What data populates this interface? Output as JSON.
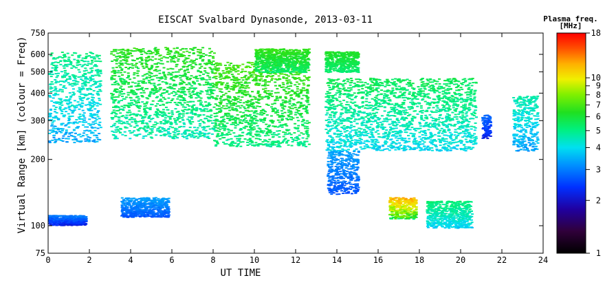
{
  "chart_data": {
    "type": "scatter",
    "title": "EISCAT Svalbard Dynasonde, 2013-03-11",
    "xlabel": "UT TIME",
    "ylabel": "Virtual Range [km] (colour = Freq)",
    "xlim": [
      0,
      24
    ],
    "ylim": [
      75,
      750
    ],
    "yscale": "log",
    "x_ticks": [
      "0",
      "2",
      "4",
      "6",
      "8",
      "10",
      "12",
      "14",
      "16",
      "18",
      "20",
      "22",
      "24"
    ],
    "y_ticks": [
      "75",
      "100",
      "200",
      "300",
      "400",
      "500",
      "600",
      "750"
    ],
    "colorbar": {
      "title_line1": "Plasma freq.",
      "title_line2": "[MHz]",
      "scale": "log",
      "range": [
        1,
        18
      ],
      "ticks": [
        "1",
        "2",
        "3",
        "4",
        "5",
        "6",
        "7",
        "8",
        "9",
        "10",
        "18"
      ]
    },
    "grid": false,
    "clusters": [
      {
        "x": [
          0.0,
          2.5
        ],
        "y": [
          240,
          620
        ],
        "freq": [
          3.0,
          5.5
        ]
      },
      {
        "x": [
          3.0,
          8.0
        ],
        "y": [
          250,
          650
        ],
        "freq": [
          4.0,
          7.0
        ]
      },
      {
        "x": [
          8.0,
          12.6
        ],
        "y": [
          230,
          560
        ],
        "freq": [
          4.5,
          7.5
        ]
      },
      {
        "x": [
          10.0,
          12.6
        ],
        "y": [
          500,
          640
        ],
        "freq": [
          5.0,
          7.0
        ]
      },
      {
        "x": [
          13.4,
          15.0
        ],
        "y": [
          500,
          620
        ],
        "freq": [
          5.0,
          6.5
        ]
      },
      {
        "x": [
          13.4,
          20.7
        ],
        "y": [
          220,
          470
        ],
        "freq": [
          3.5,
          6.0
        ]
      },
      {
        "x": [
          21.0,
          21.4
        ],
        "y": [
          250,
          320
        ],
        "freq": [
          2.0,
          3.0
        ]
      },
      {
        "x": [
          22.5,
          23.7
        ],
        "y": [
          220,
          390
        ],
        "freq": [
          3.0,
          5.0
        ]
      },
      {
        "x": [
          0.0,
          1.8
        ],
        "y": [
          101,
          112
        ],
        "freq": [
          2.0,
          3.2
        ]
      },
      {
        "x": [
          3.5,
          5.8
        ],
        "y": [
          110,
          135
        ],
        "freq": [
          2.5,
          3.5
        ]
      },
      {
        "x": [
          16.5,
          17.8
        ],
        "y": [
          108,
          135
        ],
        "freq": [
          5.0,
          13.0
        ]
      },
      {
        "x": [
          18.3,
          20.5
        ],
        "y": [
          98,
          130
        ],
        "freq": [
          3.5,
          5.5
        ]
      },
      {
        "x": [
          13.5,
          15.0
        ],
        "y": [
          140,
          220
        ],
        "freq": [
          2.5,
          3.5
        ]
      }
    ]
  }
}
